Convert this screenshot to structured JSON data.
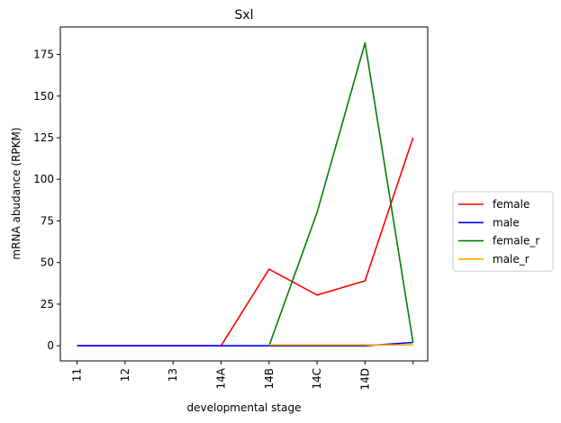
{
  "chart_data": {
    "type": "line",
    "title": "Sxl",
    "xlabel": "developmental stage",
    "ylabel": "mRNA abudance (RPKM)",
    "categories": [
      "11",
      "12",
      "13",
      "14A",
      "14B",
      "14C",
      "14D",
      ""
    ],
    "ylim": [
      -9.1,
      191.5
    ],
    "yticks": [
      0,
      25,
      50,
      75,
      100,
      125,
      150,
      175
    ],
    "grid": false,
    "legend_position": "right",
    "series": [
      {
        "name": "female",
        "color": "#ff0000",
        "values": [
          0,
          0,
          0,
          0,
          46,
          30.5,
          39,
          125
        ]
      },
      {
        "name": "male",
        "color": "#0000ff",
        "values": [
          0,
          0,
          0,
          0,
          0,
          0,
          0,
          2
        ]
      },
      {
        "name": "female_r",
        "color": "#008000",
        "values": [
          null,
          null,
          null,
          null,
          0,
          80,
          182,
          2
        ]
      },
      {
        "name": "male_r",
        "color": "#ffa500",
        "values": [
          null,
          null,
          null,
          null,
          0.5,
          0.5,
          0.5,
          0.5
        ]
      }
    ]
  }
}
